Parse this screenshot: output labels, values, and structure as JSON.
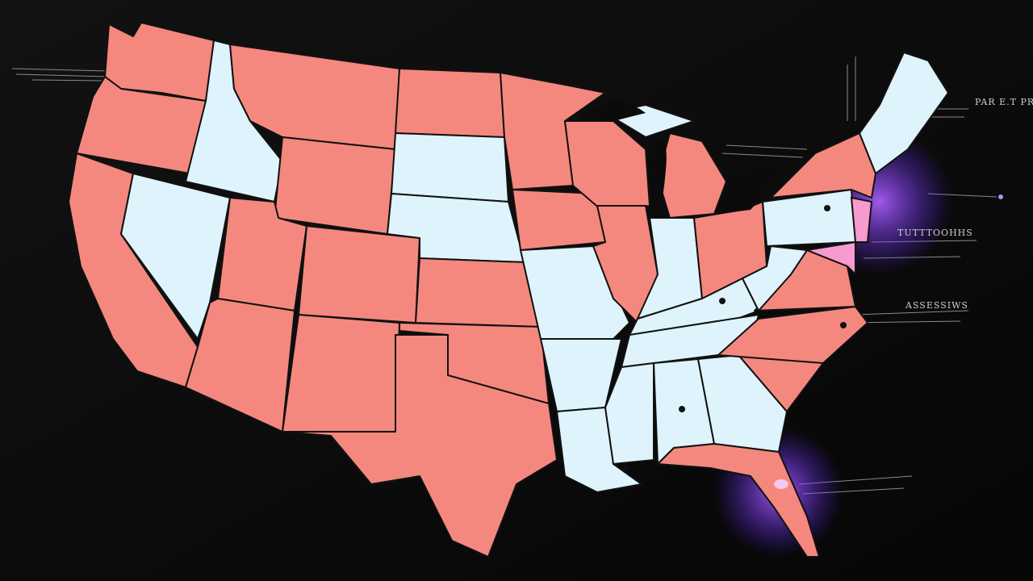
{
  "labels": [
    "PAR E.T PRO",
    "TUTTTOOHHS",
    "ASSESSIWS"
  ]
}
